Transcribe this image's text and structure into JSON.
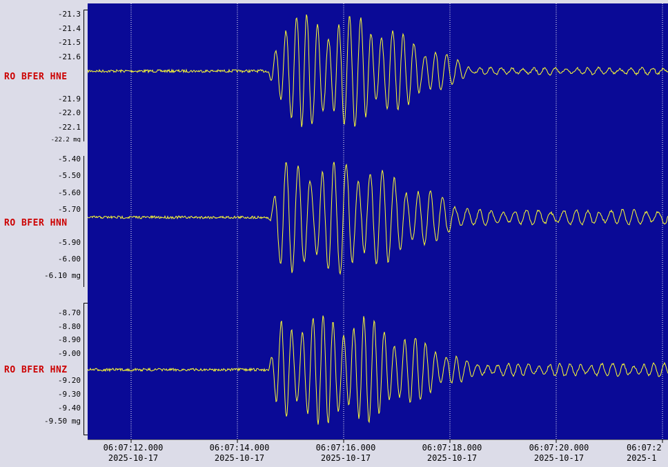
{
  "channels": [
    {
      "label": "RO BFER HNE",
      "ticks": [
        "-21.3",
        "-21.4",
        "-21.5",
        "-21.6",
        "-21.9",
        "-22.0",
        "-22.1",
        "-22.2 mg"
      ],
      "tick_values": [
        -21.3,
        -21.4,
        -21.5,
        -21.6,
        -21.9,
        -22.0,
        -22.1,
        -22.2
      ]
    },
    {
      "label": "RO BFER HNN",
      "ticks": [
        "-5.40",
        "-5.50",
        "-5.60",
        "-5.70",
        "-5.90",
        "-6.00",
        "-6.10 mg"
      ],
      "tick_values": [
        -5.4,
        -5.5,
        -5.6,
        -5.7,
        -5.9,
        -6.0,
        -6.1
      ]
    },
    {
      "label": "RO BFER HNZ",
      "ticks": [
        "-8.70",
        "-8.80",
        "-8.90",
        "-9.00",
        "-9.20",
        "-9.30",
        "-9.40",
        "-9.50 mg"
      ],
      "tick_values": [
        -8.7,
        -8.8,
        -8.9,
        -9.0,
        -9.2,
        -9.3,
        -9.4,
        -9.5
      ]
    }
  ],
  "time_axis": [
    {
      "time": "06:07:12.000",
      "date": "2025-10-17"
    },
    {
      "time": "06:07:14.000",
      "date": "2025-10-17"
    },
    {
      "time": "06:07:16.000",
      "date": "2025-10-17"
    },
    {
      "time": "06:07:18.000",
      "date": "2025-10-17"
    },
    {
      "time": "06:07:20.000",
      "date": "2025-10-17"
    },
    {
      "time": "06:07:2",
      "date": "2025-1"
    }
  ],
  "colors": {
    "plot_background": "#0a0a96",
    "trace": "#ffff33",
    "label": "#cc0000",
    "gridline": "#ffffff"
  }
}
